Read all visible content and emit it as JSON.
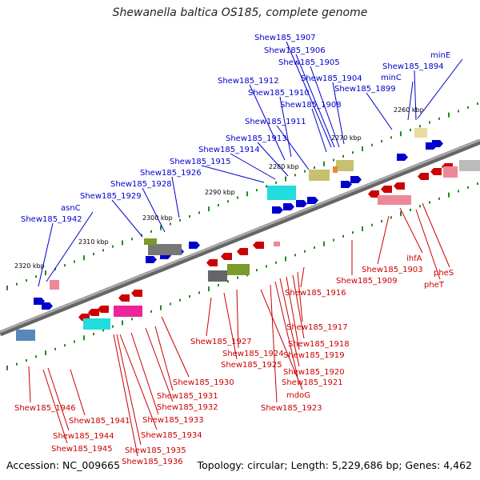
{
  "title": "Shewanella baltica OS185, complete genome",
  "footer": {
    "accession": "Accession: NC_009665",
    "topology": "Topology: circular; Length: 5,229,686 bp; Genes: 4,462"
  },
  "colors": {
    "forward": "#0000cc",
    "reverse": "#cc0000",
    "backbone": "#888888",
    "tick": "#228b22"
  },
  "scale_labels": [
    "2320 kbp",
    "2310 kbp",
    "2300 kbp",
    "2290 kbp",
    "2280 kbp",
    "2270 kbp",
    "2260 kbp"
  ],
  "forward_genes": [
    "Shew185_1942",
    "asnC",
    "Shew185_1929",
    "Shew185_1928",
    "Shew185_1926",
    "Shew185_1915",
    "Shew185_1914",
    "Shew185_1913",
    "Shew185_1911",
    "Shew185_1912",
    "Shew185_1910",
    "Shew185_1908",
    "Shew185_1907",
    "Shew185_1906",
    "Shew185_1905",
    "Shew185_1904",
    "Shew185_1899",
    "minC",
    "Shew185_1894",
    "minE"
  ],
  "reverse_genes": [
    "Shew185_1946",
    "Shew185_1945",
    "Shew185_1944",
    "Shew185_1941",
    "Shew185_1936",
    "Shew185_1935",
    "Shew185_1934",
    "Shew185_1933",
    "Shew185_1932",
    "Shew185_1931",
    "Shew185_1930",
    "Shew185_1927",
    "Shew185_1925",
    "Shew185_1924",
    "mdoG",
    "Shew185_1923",
    "Shew185_1921",
    "Shew185_1920",
    "Shew185_1919",
    "Shew185_1918",
    "Shew185_1917",
    "Shew185_1916",
    "Shew185_1909",
    "Shew185_1903",
    "ihfA",
    "pheT",
    "pheS"
  ]
}
